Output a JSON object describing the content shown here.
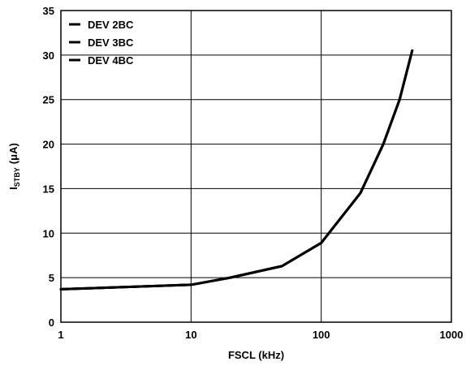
{
  "chart_data": {
    "type": "line",
    "xscale": "log",
    "xlim": [
      1,
      1000
    ],
    "ylim": [
      0,
      35
    ],
    "xticks": [
      1,
      10,
      100,
      1000
    ],
    "yticks": [
      0,
      5,
      10,
      15,
      20,
      25,
      30,
      35
    ],
    "xlabel": "FSCL (kHz)",
    "ylabel": {
      "main": "I",
      "sub": "STBY",
      "unit": "(μA)"
    },
    "grid": true,
    "legend_position": "top-left",
    "line_color": "#000000",
    "series": [
      {
        "name": "DEV 2BC",
        "x": [
          1,
          10,
          20,
          50,
          100,
          200,
          300,
          400,
          500
        ],
        "y": [
          3.7,
          4.2,
          5.0,
          6.3,
          8.9,
          14.5,
          20.0,
          25.0,
          30.5
        ]
      },
      {
        "name": "DEV 3BC",
        "x": [
          1,
          10,
          20,
          50,
          100,
          200,
          300,
          400,
          500
        ],
        "y": [
          3.7,
          4.2,
          5.0,
          6.3,
          8.9,
          14.5,
          20.0,
          25.0,
          30.5
        ]
      },
      {
        "name": "DEV 4BC",
        "x": [
          1,
          10,
          20,
          50,
          100,
          200,
          300,
          400,
          500
        ],
        "y": [
          3.7,
          4.2,
          5.0,
          6.3,
          8.9,
          14.5,
          20.0,
          25.0,
          30.5
        ]
      }
    ]
  }
}
